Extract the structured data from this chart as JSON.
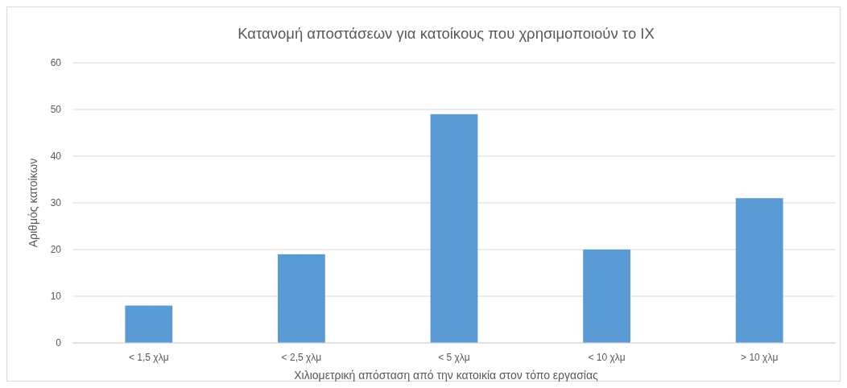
{
  "chart_data": {
    "type": "bar",
    "title": "Κατανομή αποστάσεων για κατοίκους που χρησιμοποιούν το ΙΧ",
    "xlabel": "Χιλιομετρική απόσταση από την κατοικία στον τόπο εργασίας",
    "ylabel": "Αριθμός κατοίκων",
    "categories": [
      "< 1,5 χλμ",
      "< 2,5 χλμ",
      "< 5 χλμ",
      "< 10 χλμ",
      "> 10 χλμ"
    ],
    "values": [
      8,
      19,
      49,
      20,
      31
    ],
    "color": "#5b9bd5",
    "ylim": [
      0,
      60
    ],
    "yticks": [
      0,
      10,
      20,
      30,
      40,
      50,
      60
    ],
    "grid": "y"
  }
}
